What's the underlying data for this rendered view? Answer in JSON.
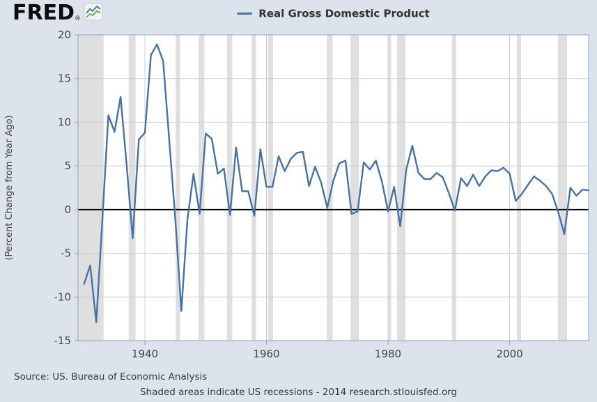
{
  "brand": {
    "logo_text": "FRED",
    "registered_mark": "®"
  },
  "legend": {
    "label": "Real Gross Domestic Product",
    "line_color": "#4572a7"
  },
  "chart_data": {
    "type": "line",
    "title": "Real Gross Domestic Product",
    "ylabel": "(Percent Change from Year Ago)",
    "xlabel": "",
    "x_range": [
      1929,
      2013
    ],
    "ylim": [
      -15,
      20
    ],
    "yticks": [
      20,
      15,
      10,
      5,
      0,
      -5,
      -10,
      -15
    ],
    "xticks": [
      1940,
      1960,
      1980,
      2000
    ],
    "grid": true,
    "zero_line": true,
    "legend_position": "top-center",
    "series": [
      {
        "name": "Real Gross Domestic Product",
        "color": "#4572a7",
        "years": [
          1930,
          1931,
          1932,
          1933,
          1934,
          1935,
          1936,
          1937,
          1938,
          1939,
          1940,
          1941,
          1942,
          1943,
          1944,
          1945,
          1946,
          1947,
          1948,
          1949,
          1950,
          1951,
          1952,
          1953,
          1954,
          1955,
          1956,
          1957,
          1958,
          1959,
          1960,
          1961,
          1962,
          1963,
          1964,
          1965,
          1966,
          1967,
          1968,
          1969,
          1970,
          1971,
          1972,
          1973,
          1974,
          1975,
          1976,
          1977,
          1978,
          1979,
          1980,
          1981,
          1982,
          1983,
          1984,
          1985,
          1986,
          1987,
          1988,
          1989,
          1990,
          1991,
          1992,
          1993,
          1994,
          1995,
          1996,
          1997,
          1998,
          1999,
          2000,
          2001,
          2002,
          2003,
          2004,
          2005,
          2006,
          2007,
          2008,
          2009,
          2010,
          2011,
          2012,
          2013
        ],
        "values": [
          -8.5,
          -6.4,
          -12.9,
          -1.2,
          10.8,
          8.9,
          12.9,
          5.1,
          -3.3,
          8.0,
          8.8,
          17.7,
          18.9,
          17.0,
          8.0,
          -1.0,
          -11.6,
          -1.1,
          4.1,
          -0.5,
          8.7,
          8.1,
          4.1,
          4.7,
          -0.6,
          7.1,
          2.1,
          2.1,
          -0.7,
          6.9,
          2.6,
          2.6,
          6.1,
          4.4,
          5.8,
          6.5,
          6.6,
          2.7,
          4.9,
          3.1,
          0.2,
          3.3,
          5.3,
          5.6,
          -0.5,
          -0.2,
          5.4,
          4.6,
          5.6,
          3.2,
          -0.2,
          2.6,
          -1.9,
          4.6,
          7.3,
          4.2,
          3.5,
          3.5,
          4.2,
          3.7,
          1.9,
          -0.1,
          3.6,
          2.7,
          4.0,
          2.7,
          3.8,
          4.5,
          4.4,
          4.8,
          4.1,
          1.0,
          1.8,
          2.8,
          3.8,
          3.3,
          2.7,
          1.8,
          -0.3,
          -2.8,
          2.5,
          1.6,
          2.3,
          2.2
        ]
      }
    ],
    "recessions": [
      [
        1929.0,
        1933.21
      ],
      [
        1937.33,
        1938.45
      ],
      [
        1945.08,
        1945.79
      ],
      [
        1948.83,
        1949.79
      ],
      [
        1953.5,
        1954.37
      ],
      [
        1957.58,
        1958.29
      ],
      [
        1960.25,
        1961.08
      ],
      [
        1969.92,
        1970.87
      ],
      [
        1973.83,
        1975.21
      ],
      [
        1980.0,
        1980.5
      ],
      [
        1981.5,
        1982.87
      ],
      [
        1990.5,
        1991.21
      ],
      [
        2001.21,
        2001.87
      ],
      [
        2007.92,
        2009.45
      ]
    ],
    "colors": {
      "page_bg": "#dce3ed",
      "plot_bg": "#ffffff",
      "recession_band": "#dfdfdf",
      "gridline": "#cccccc",
      "zero_line": "#000000",
      "axis": "#93a4b8",
      "tick_text": "#444444"
    }
  },
  "footer": {
    "source": "Source: US. Bureau of Economic Analysis",
    "note": "Shaded areas indicate US recessions - 2014 research.stlouisfed.org"
  }
}
